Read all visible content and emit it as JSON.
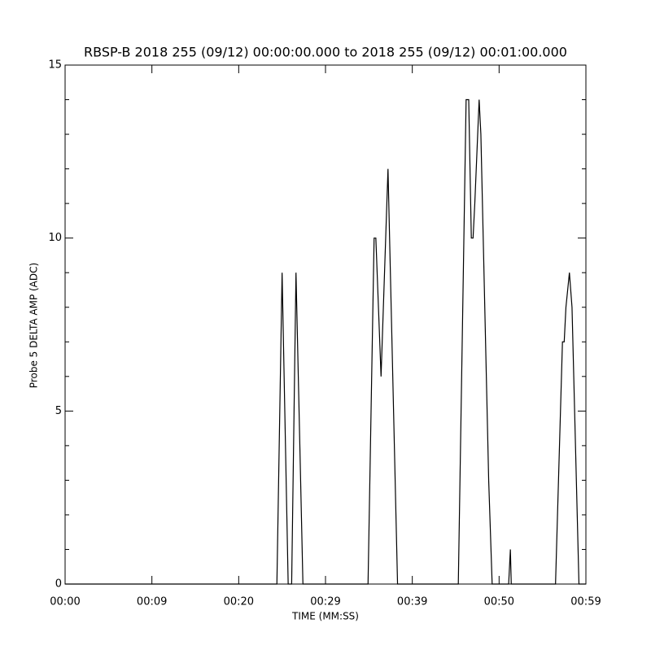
{
  "chart_data": {
    "type": "line",
    "title": "RBSP-B 2018 255 (09/12) 00:00:00.000 to 2018 255 (09/12) 00:01:00.000",
    "x_label": "TIME (MM:SS)",
    "y_label": "Probe 5 DELTA AMP (ADC)",
    "x": [
      0,
      24.4,
      25.0,
      25.7,
      26.1,
      26.6,
      27.4,
      34.9,
      35.6,
      35.8,
      36.4,
      37.2,
      38.3,
      45.3,
      46.2,
      46.5,
      46.8,
      47.0,
      47.2,
      47.7,
      47.9,
      48.8,
      49.2,
      51.1,
      51.3,
      51.4,
      56.5,
      57.3,
      57.5,
      57.7,
      58.1,
      58.4,
      58.7,
      59.2,
      60
    ],
    "series": [
      {
        "color": "#000000",
        "values": [
          0,
          0,
          9,
          0,
          0,
          9,
          0,
          0,
          10,
          10,
          6,
          12,
          0,
          0,
          14,
          14,
          10,
          10,
          11,
          14,
          13,
          3,
          0,
          0,
          1,
          0,
          0,
          7,
          7,
          8,
          9,
          8,
          5,
          0,
          0
        ]
      }
    ],
    "xlim": [
      0,
      60
    ],
    "xticks": [
      {
        "value": 0,
        "label": "00:00"
      },
      {
        "value": 10,
        "label": "00:09"
      },
      {
        "value": 20,
        "label": "00:20"
      },
      {
        "value": 30,
        "label": "00:29"
      },
      {
        "value": 40,
        "label": "00:39"
      },
      {
        "value": 50,
        "label": "00:50"
      },
      {
        "value": 60,
        "label": "00:59"
      }
    ],
    "ylim": [
      0,
      15
    ],
    "yticks": [
      0,
      5,
      10,
      15
    ],
    "yminorticks": [
      1,
      2,
      3,
      4,
      6,
      7,
      8,
      9,
      11,
      12,
      13,
      14
    ]
  }
}
